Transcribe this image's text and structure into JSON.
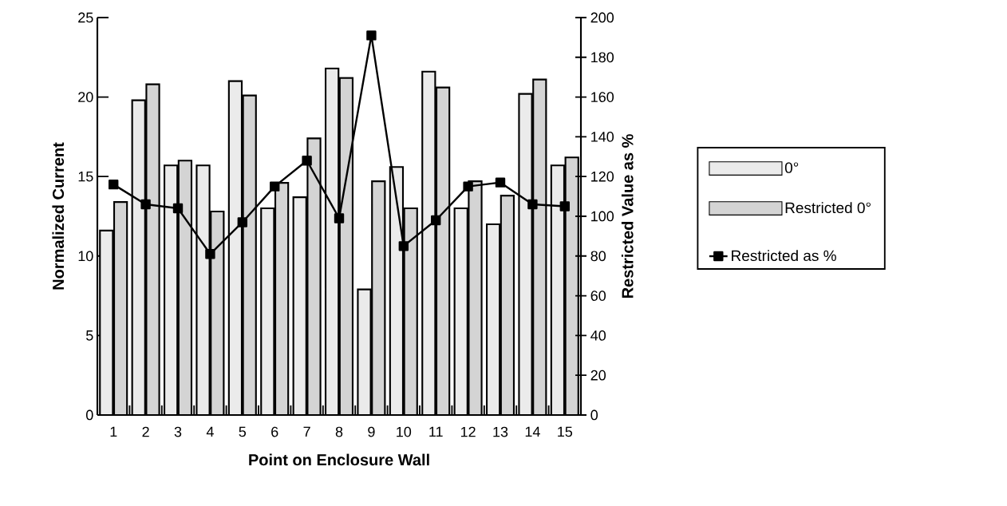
{
  "chart_data": {
    "type": "bar",
    "xlabel": "Point on Enclosure Wall",
    "ylabel": "Normalized Current",
    "y2label": "Restricted Value as %",
    "categories": [
      "1",
      "2",
      "3",
      "4",
      "5",
      "6",
      "7",
      "8",
      "9",
      "10",
      "11",
      "12",
      "13",
      "14",
      "15"
    ],
    "series": [
      {
        "name": "0°",
        "color": "#ebebeb",
        "values": [
          11.6,
          19.8,
          15.7,
          15.7,
          21.0,
          13.0,
          13.7,
          21.8,
          7.9,
          15.6,
          21.6,
          13.0,
          12.0,
          20.2,
          15.7
        ]
      },
      {
        "name": "Restricted 0°",
        "color": "#d4d4d4",
        "values": [
          13.4,
          20.8,
          16.0,
          12.8,
          20.1,
          14.6,
          17.4,
          21.2,
          14.7,
          13.0,
          20.6,
          14.7,
          13.8,
          21.1,
          16.2
        ]
      },
      {
        "name": "Restricted as %",
        "type": "line",
        "axis": "y2",
        "color": "#000000",
        "values": [
          116,
          106,
          104,
          81,
          97,
          115,
          128,
          99,
          191,
          85,
          98,
          115,
          117,
          106,
          105
        ]
      }
    ],
    "ylim": [
      0,
      25
    ],
    "yticks": [
      0,
      5,
      10,
      15,
      20,
      25
    ],
    "y2lim": [
      0,
      200
    ],
    "y2ticks": [
      0,
      20,
      40,
      60,
      80,
      100,
      120,
      140,
      160,
      180,
      200
    ],
    "marker": "square",
    "legend": "right",
    "grid": false
  }
}
